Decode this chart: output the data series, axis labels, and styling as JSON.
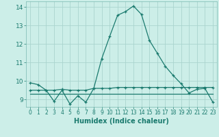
{
  "xlabel": "Humidex (Indice chaleur)",
  "background_color": "#cceee8",
  "grid_color": "#aad4ce",
  "line_color": "#1a7a6e",
  "xlim": [
    -0.5,
    23.5
  ],
  "ylim": [
    8.6,
    14.3
  ],
  "yticks": [
    9,
    10,
    11,
    12,
    13,
    14
  ],
  "xticks": [
    0,
    1,
    2,
    3,
    4,
    5,
    6,
    7,
    8,
    9,
    10,
    11,
    12,
    13,
    14,
    15,
    16,
    17,
    18,
    19,
    20,
    21,
    22,
    23
  ],
  "series1_x": [
    0,
    1,
    2,
    3,
    4,
    5,
    6,
    7,
    8,
    9,
    10,
    11,
    12,
    13,
    14,
    15,
    16,
    17,
    18,
    19,
    20,
    21,
    22,
    23
  ],
  "series1_y": [
    9.9,
    9.8,
    9.5,
    8.9,
    9.5,
    8.75,
    9.2,
    8.85,
    9.6,
    11.2,
    12.4,
    13.55,
    13.75,
    14.05,
    13.6,
    12.2,
    11.5,
    10.8,
    10.3,
    9.85,
    9.35,
    9.55,
    9.6,
    8.85
  ],
  "series2_x": [
    0,
    1,
    2,
    3,
    4,
    5,
    6,
    7,
    8,
    9,
    10,
    11,
    12,
    13,
    14,
    15,
    16,
    17,
    18,
    19,
    20,
    21,
    22,
    23
  ],
  "series2_y": [
    9.5,
    9.5,
    9.5,
    9.5,
    9.55,
    9.5,
    9.5,
    9.5,
    9.6,
    9.6,
    9.6,
    9.65,
    9.65,
    9.65,
    9.65,
    9.65,
    9.65,
    9.65,
    9.65,
    9.65,
    9.65,
    9.65,
    9.65,
    9.65
  ],
  "series3_x": [
    0,
    1,
    2,
    3,
    4,
    5,
    6,
    7,
    8,
    9,
    10,
    11,
    12,
    13,
    14,
    15,
    16,
    17,
    18,
    19,
    20,
    21,
    22,
    23
  ],
  "series3_y": [
    9.3,
    9.3,
    9.3,
    9.3,
    9.3,
    9.3,
    9.3,
    9.3,
    9.3,
    9.3,
    9.3,
    9.3,
    9.3,
    9.3,
    9.3,
    9.3,
    9.3,
    9.3,
    9.3,
    9.3,
    9.3,
    9.3,
    9.3,
    9.3
  ],
  "xlabel_color": "#1a7a6e",
  "xlabel_fontsize": 7,
  "tick_fontsize": 6.5,
  "tick_color": "#1a7a6e"
}
